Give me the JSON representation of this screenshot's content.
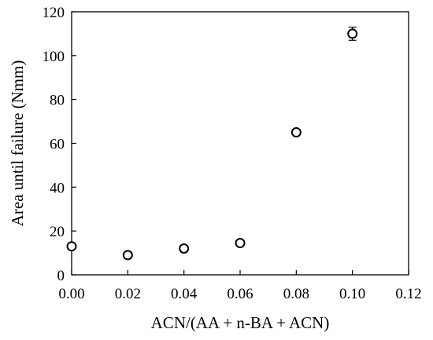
{
  "chart_data": {
    "type": "scatter",
    "title": "",
    "xlabel": "ACN/(AA + n-BA + ACN)",
    "ylabel": "Area until failure (Nmm)",
    "xlim": [
      0,
      0.12
    ],
    "ylim": [
      0,
      120
    ],
    "x_ticks": [
      "0.00",
      "0.02",
      "0.04",
      "0.06",
      "0.08",
      "0.10",
      "0.12"
    ],
    "y_ticks": [
      "0",
      "20",
      "40",
      "60",
      "80",
      "100",
      "120"
    ],
    "grid": false,
    "legend": "none",
    "marker": "open-circle",
    "series": [
      {
        "x": [
          0.0,
          0.02,
          0.04,
          0.06,
          0.08,
          0.1
        ],
        "y": [
          13,
          9,
          12,
          14.5,
          65,
          110
        ],
        "err": [
          0,
          0,
          0,
          0,
          0,
          3
        ]
      }
    ]
  },
  "colors": {
    "axis": "#000000",
    "marker_stroke": "#000000",
    "marker_fill": "#ffffff",
    "background": "#ffffff"
  }
}
